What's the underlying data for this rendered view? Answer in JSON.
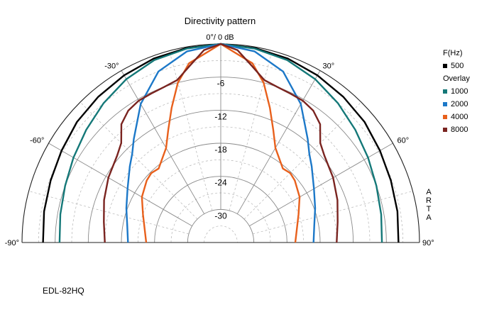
{
  "chart_data": {
    "type": "polar",
    "title": "Directivity pattern",
    "reference_label": "0°/ 0 dB",
    "radial_ticks": [
      "-6",
      "-12",
      "-18",
      "-24",
      "-30"
    ],
    "radial_range_db": [
      -36,
      0
    ],
    "radial_major_step_db": 6,
    "radial_minor_step_db": 3,
    "angle_range_deg": [
      -90,
      90
    ],
    "angle_major_step_deg": 30,
    "angle_minor_step_deg": 15,
    "angle_tick_labels": [
      "-90°",
      "-60°",
      "-30°",
      "30°",
      "60°",
      "90°"
    ],
    "legend": {
      "header": "F(Hz)",
      "overlay_header": "Overlay"
    },
    "series": [
      {
        "name": "500",
        "color": "#000000",
        "angles": [
          0,
          10,
          20,
          30,
          40,
          50,
          60,
          70,
          80,
          90
        ],
        "values": [
          0,
          -0.2,
          -0.5,
          -1.0,
          -1.5,
          -2.0,
          -2.7,
          -3.2,
          -3.5,
          -3.8
        ]
      },
      {
        "name": "1000",
        "color": "#147878",
        "angles": [
          0,
          10,
          20,
          30,
          40,
          50,
          60,
          70,
          80,
          90
        ],
        "values": [
          0,
          -0.3,
          -0.8,
          -1.8,
          -3.0,
          -4.2,
          -5.2,
          -6.0,
          -6.5,
          -6.8
        ]
      },
      {
        "name": "2000",
        "color": "#1c78c8",
        "angles": [
          0,
          10,
          20,
          30,
          40,
          45,
          50,
          60,
          70,
          80,
          90
        ],
        "values": [
          0,
          -0.8,
          -3.0,
          -7.0,
          -11.5,
          -13.3,
          -14.5,
          -16.5,
          -17.8,
          -18.8,
          -19.2
        ]
      },
      {
        "name": "4000",
        "color": "#e8601c",
        "angles": [
          0,
          10,
          15,
          20,
          25,
          30,
          40,
          45,
          50,
          60,
          70,
          80,
          90
        ],
        "values": [
          0,
          -3.0,
          -6.0,
          -10.0,
          -13.5,
          -16.2,
          -18.5,
          -18.2,
          -18.5,
          -19.5,
          -21.0,
          -22.0,
          -22.5
        ]
      },
      {
        "name": "8000",
        "color": "#7a2420",
        "angles": [
          0,
          5,
          10,
          15,
          20,
          25,
          30,
          35,
          40,
          45,
          50,
          60,
          70,
          80,
          90
        ],
        "values": [
          0,
          -1.0,
          -3.5,
          -5.5,
          -6.0,
          -6.2,
          -6.3,
          -6.8,
          -8.0,
          -10.5,
          -11.5,
          -12.5,
          -13.5,
          -14.5,
          -15.0
        ]
      }
    ]
  },
  "footer": {
    "model": "EDL-82HQ",
    "watermark": [
      "A",
      "R",
      "T",
      "A"
    ]
  }
}
